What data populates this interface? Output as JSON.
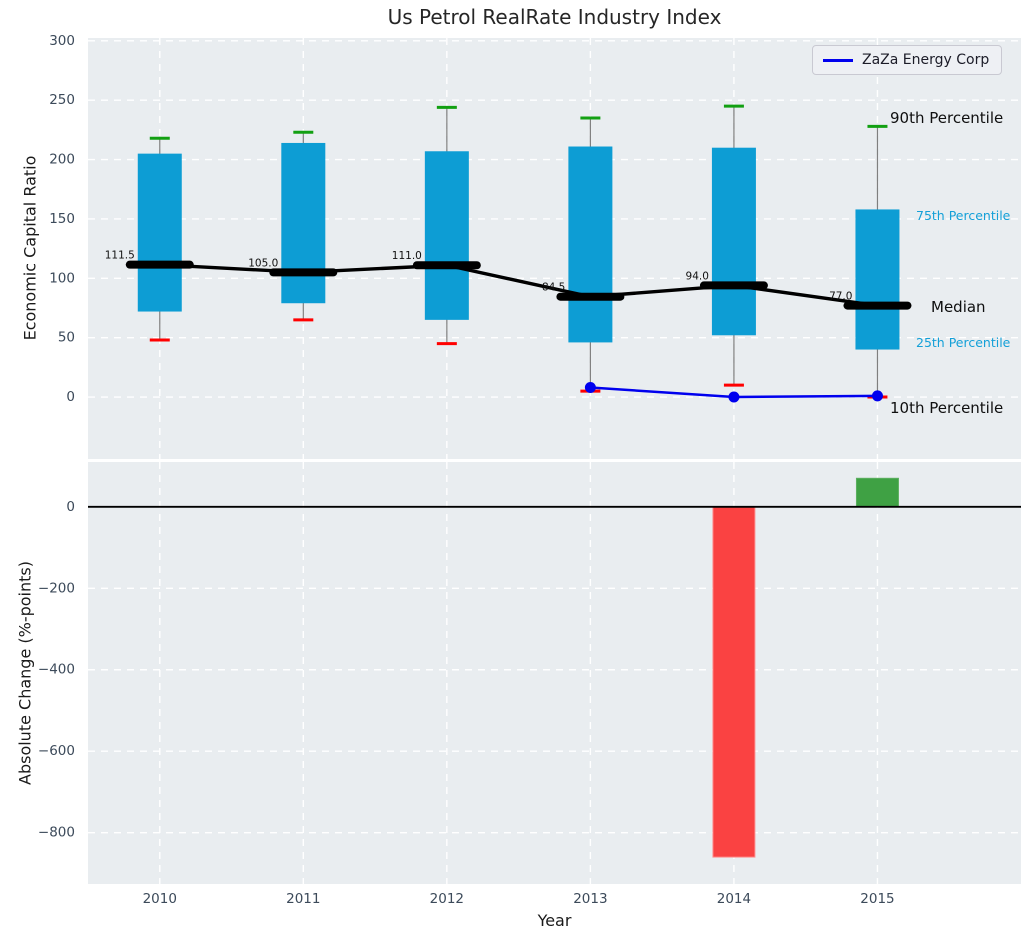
{
  "title": "Us Petrol RealRate Industry Index",
  "legend": {
    "series_label": "ZaZa Energy Corp"
  },
  "axis_labels": {
    "top_y": "Economic Capital Ratio",
    "bottom_y": "Absolute Change (%-points)",
    "x": "Year"
  },
  "annotations": {
    "p90": "90th Percentile",
    "p75": "75th Percentile",
    "median": "Median",
    "p25": "25th Percentile",
    "p10": "10th Percentile"
  },
  "colors": {
    "box_fill": "#0d9dd4",
    "median_line": "#000000",
    "whisker": "#7f7f7f",
    "cap_top_green": "#12a012",
    "cap_bottom_red": "#ff0000",
    "zaza_line_blue": "#0000ee",
    "bar_negative_red": "#fa4242",
    "bar_positive_green": "#3fa144",
    "panel_background": "#e9edf0",
    "grid": "#ffffff",
    "tick_text": "#3c4a5a",
    "percentile_text_cyan": "#14a0d8"
  },
  "chart_data": [
    {
      "type": "box",
      "panel": "top",
      "title": "Us Petrol RealRate Industry Index",
      "ylabel": "Economic Capital Ratio",
      "xlabel": "Year",
      "categories": [
        2010,
        2011,
        2012,
        2013,
        2014,
        2015
      ],
      "yticks": [
        0,
        50,
        100,
        150,
        200,
        250,
        300
      ],
      "ylim": [
        -52.2,
        302.4
      ],
      "xlim": [
        2009.5,
        2016
      ],
      "grid": true,
      "legend_position": "upper right",
      "boxes": [
        {
          "year": 2010,
          "p10": 48,
          "p25": 72,
          "median": 111.5,
          "p75": 205,
          "p90": 218,
          "median_label": "111.5"
        },
        {
          "year": 2011,
          "p10": 65,
          "p25": 79,
          "median": 105.0,
          "p75": 214,
          "p90": 223,
          "median_label": "105.0"
        },
        {
          "year": 2012,
          "p10": 45,
          "p25": 65,
          "median": 111.0,
          "p75": 207,
          "p90": 244,
          "median_label": "111.0"
        },
        {
          "year": 2013,
          "p10": 5,
          "p25": 46,
          "median": 84.5,
          "p75": 211,
          "p90": 235,
          "median_label": "84.5"
        },
        {
          "year": 2014,
          "p10": 10,
          "p25": 52,
          "median": 94.0,
          "p75": 210,
          "p90": 245,
          "median_label": "94.0"
        },
        {
          "year": 2015,
          "p10": 0,
          "p25": 40,
          "median": 77.0,
          "p75": 158,
          "p90": 228,
          "median_label": "77.0"
        }
      ],
      "series": [
        {
          "name": "ZaZa Energy Corp",
          "x": [
            2013,
            2014,
            2015
          ],
          "values": [
            8,
            0,
            1
          ]
        }
      ]
    },
    {
      "type": "bar",
      "panel": "bottom",
      "ylabel": "Absolute Change (%-points)",
      "categories": [
        2010,
        2011,
        2012,
        2013,
        2014,
        2015
      ],
      "values": [
        null,
        null,
        null,
        null,
        -860,
        70
      ],
      "yticks": [
        0,
        -200,
        -400,
        -600,
        -800
      ],
      "ylim": [
        -926,
        110
      ],
      "grid": true
    }
  ]
}
